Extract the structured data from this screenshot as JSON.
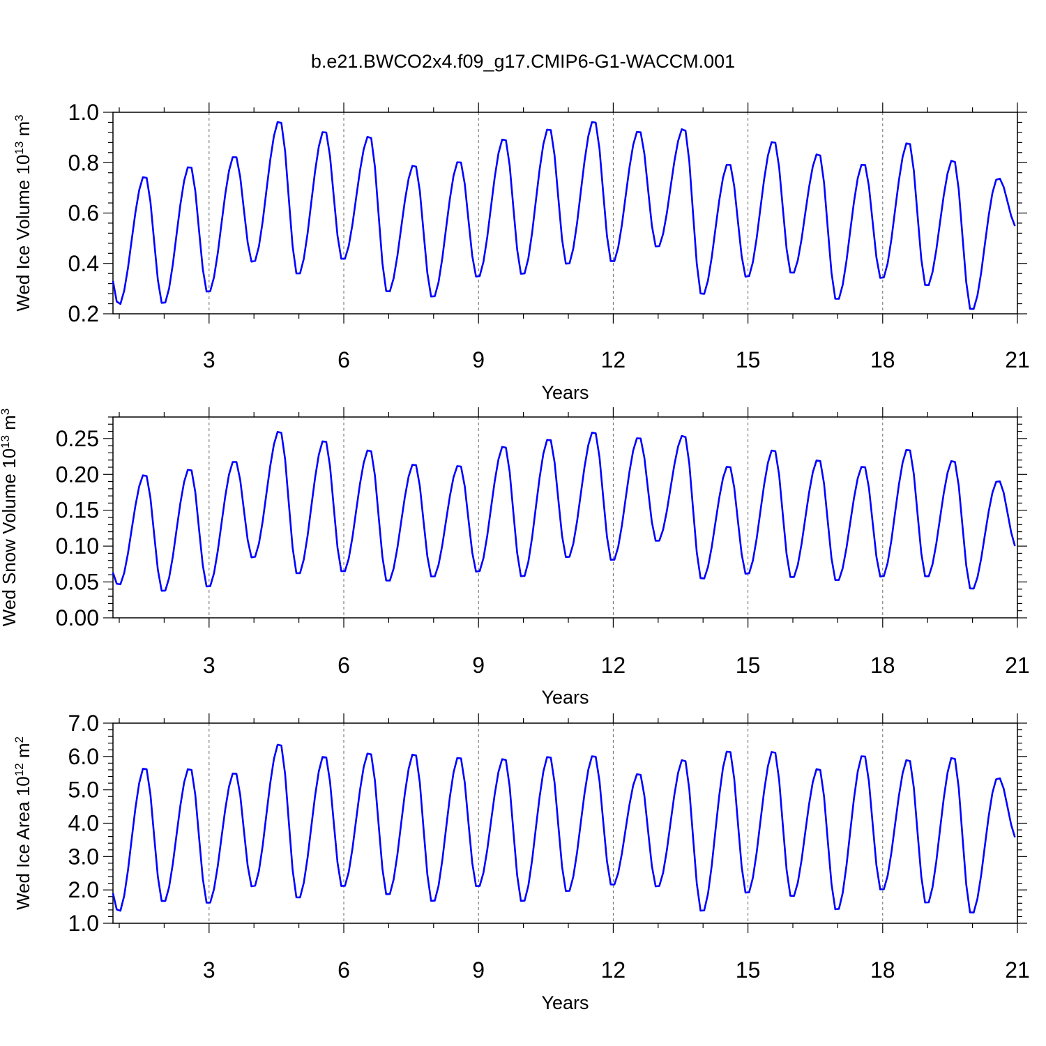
{
  "figure_title": "b.e21.BWCO2x4.f09_g17.CMIP6-G1-WACCM.001",
  "colors": {
    "line": "#0000ff",
    "axes": "#000000",
    "grid": "#000000"
  },
  "chart_data": [
    {
      "type": "line",
      "title": "b.e21.BWCO2x4.f09_g17.CMIP6-G1-WACCM.001",
      "xlabel": "Years",
      "ylabel": {
        "main": "Wed Ice Volume 10",
        "exp": "13",
        "unit": " m",
        "unit_exp": "3"
      },
      "xlim": [
        0.86,
        21.0
      ],
      "ylim": [
        0.2,
        1.0
      ],
      "x_ticks": [
        3,
        6,
        9,
        12,
        15,
        18,
        21
      ],
      "y_ticks": [
        0.2,
        0.4,
        0.6,
        0.8,
        1.0
      ],
      "y_tick_labels": [
        "0.2",
        "0.4",
        "0.6",
        "0.8",
        "1.0"
      ],
      "grid": "vertical dashed at major x ticks",
      "series": [
        {
          "name": "Wed Ice Volume",
          "mins": [
            0.23,
            0.235,
            0.28,
            0.4,
            0.35,
            0.41,
            0.28,
            0.26,
            0.34,
            0.35,
            0.39,
            0.4,
            0.46,
            0.27,
            0.34,
            0.355,
            0.25,
            0.335,
            0.305,
            0.21
          ],
          "maxs": [
            0.75,
            0.79,
            0.83,
            0.97,
            0.93,
            0.91,
            0.795,
            0.81,
            0.9,
            0.94,
            0.97,
            0.93,
            0.94,
            0.8,
            0.89,
            0.84,
            0.8,
            0.885,
            0.815
          ],
          "start": 0.33,
          "end_peak": 0.74,
          "end": 0.54
        }
      ]
    },
    {
      "type": "line",
      "xlabel": "Years",
      "ylabel": {
        "main": "Wed Snow Volume 10",
        "exp": "13",
        "unit": " m",
        "unit_exp": "3"
      },
      "xlim": [
        0.86,
        21.0
      ],
      "ylim": [
        0.0,
        0.28
      ],
      "x_ticks": [
        3,
        6,
        9,
        12,
        15,
        18,
        21
      ],
      "y_ticks": [
        0.0,
        0.05,
        0.1,
        0.15,
        0.2,
        0.25
      ],
      "y_tick_labels": [
        "0.00",
        "0.05",
        "0.10",
        "0.15",
        "0.20",
        "0.25"
      ],
      "grid": "vertical dashed at major x ticks",
      "series": [
        {
          "name": "Wed Snow Volume",
          "mins": [
            0.044,
            0.035,
            0.041,
            0.082,
            0.059,
            0.062,
            0.049,
            0.055,
            0.062,
            0.055,
            0.082,
            0.078,
            0.105,
            0.052,
            0.059,
            0.054,
            0.05,
            0.055,
            0.055,
            0.038
          ],
          "maxs": [
            0.201,
            0.209,
            0.22,
            0.262,
            0.249,
            0.236,
            0.216,
            0.214,
            0.241,
            0.251,
            0.261,
            0.253,
            0.256,
            0.213,
            0.236,
            0.222,
            0.213,
            0.237,
            0.221
          ],
          "start": 0.063,
          "end_peak": 0.192,
          "end": 0.096
        }
      ]
    },
    {
      "type": "line",
      "xlabel": "Years",
      "ylabel": {
        "main": "Wed Ice Area 10",
        "exp": "12",
        "unit": " m",
        "unit_exp": "2"
      },
      "xlim": [
        0.86,
        21.0
      ],
      "ylim": [
        1.0,
        7.0
      ],
      "x_ticks": [
        3,
        6,
        9,
        12,
        15,
        18,
        21
      ],
      "y_ticks": [
        1.0,
        2.0,
        3.0,
        4.0,
        5.0,
        6.0,
        7.0
      ],
      "y_tick_labels": [
        "1.0",
        "2.0",
        "3.0",
        "4.0",
        "5.0",
        "6.0",
        "7.0"
      ],
      "grid": "vertical dashed at major x ticks",
      "series": [
        {
          "name": "Wed Ice Area",
          "mins": [
            1.3,
            1.6,
            1.55,
            2.05,
            1.7,
            2.05,
            1.8,
            1.6,
            2.05,
            1.6,
            1.9,
            2.1,
            2.05,
            1.3,
            1.85,
            1.75,
            1.35,
            1.95,
            1.55,
            1.25
          ],
          "maxs": [
            5.7,
            5.68,
            5.55,
            6.42,
            6.05,
            6.15,
            6.12,
            6.02,
            5.98,
            6.05,
            6.07,
            5.52,
            5.95,
            6.22,
            6.2,
            5.68,
            6.08,
            5.95,
            6.02
          ],
          "start": 1.9,
          "end_peak": 5.38,
          "end": 3.5
        }
      ]
    }
  ]
}
